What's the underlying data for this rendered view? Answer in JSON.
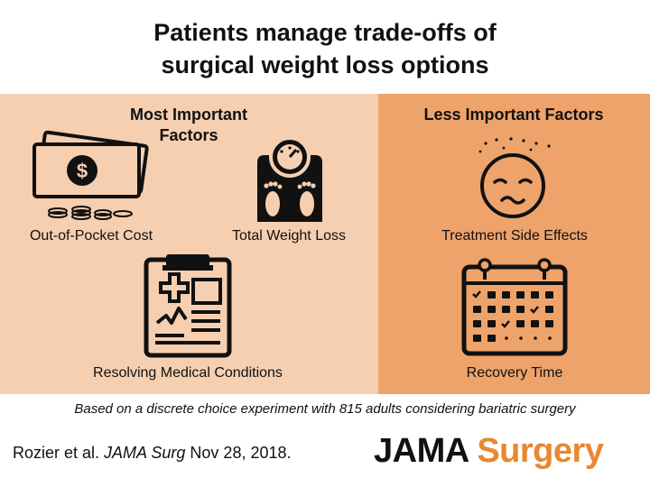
{
  "title": {
    "line1": "Patients manage trade-offs of",
    "line2": "surgical weight loss options"
  },
  "left_panel": {
    "heading_line1": "Most Important",
    "heading_line2": "Factors",
    "items": [
      {
        "label": "Out-of-Pocket Cost",
        "icon": "money-icon"
      },
      {
        "label": "Total Weight Loss",
        "icon": "scale-icon"
      },
      {
        "label": "Resolving Medical Conditions",
        "icon": "medical-chart-icon"
      }
    ]
  },
  "right_panel": {
    "heading": "Less Important Factors",
    "items": [
      {
        "label": "Treatment Side Effects",
        "icon": "sick-face-icon"
      },
      {
        "label": "Recovery Time",
        "icon": "calendar-icon"
      }
    ]
  },
  "money_symbol": "$",
  "caption": "Based on a discrete choice experiment with 815 adults considering bariatric surgery",
  "citation": {
    "prefix": "Rozier et al. ",
    "journal": "JAMA Surg",
    "suffix": " Nov 28, 2018."
  },
  "logo": {
    "part1": "JAMA",
    "part2": "Surgery"
  },
  "colors": {
    "left_panel": "#f6cfb0",
    "right_panel": "#eea36b",
    "logo_accent": "#e8882f"
  }
}
